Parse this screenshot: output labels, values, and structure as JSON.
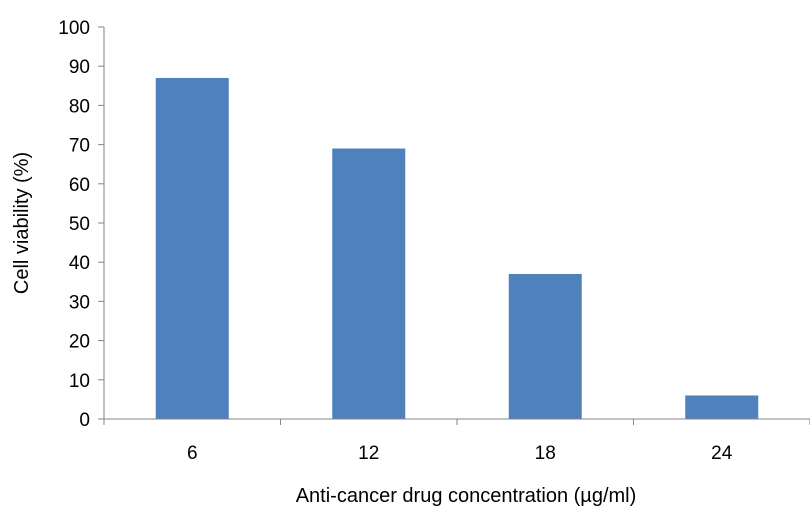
{
  "chart_data": {
    "type": "bar",
    "title": "",
    "xlabel": "Anti-cancer drug concentration (µg/ml)",
    "ylabel": "Cell viability (%)",
    "categories": [
      "6",
      "12",
      "18",
      "24"
    ],
    "values": [
      87,
      69,
      37,
      6
    ],
    "ylim": [
      0,
      100
    ],
    "yticks": [
      0,
      10,
      20,
      30,
      40,
      50,
      60,
      70,
      80,
      90,
      100
    ],
    "grid": false,
    "legend": "none",
    "bar_color": "#4f81bd",
    "axis_color": "#868686"
  }
}
